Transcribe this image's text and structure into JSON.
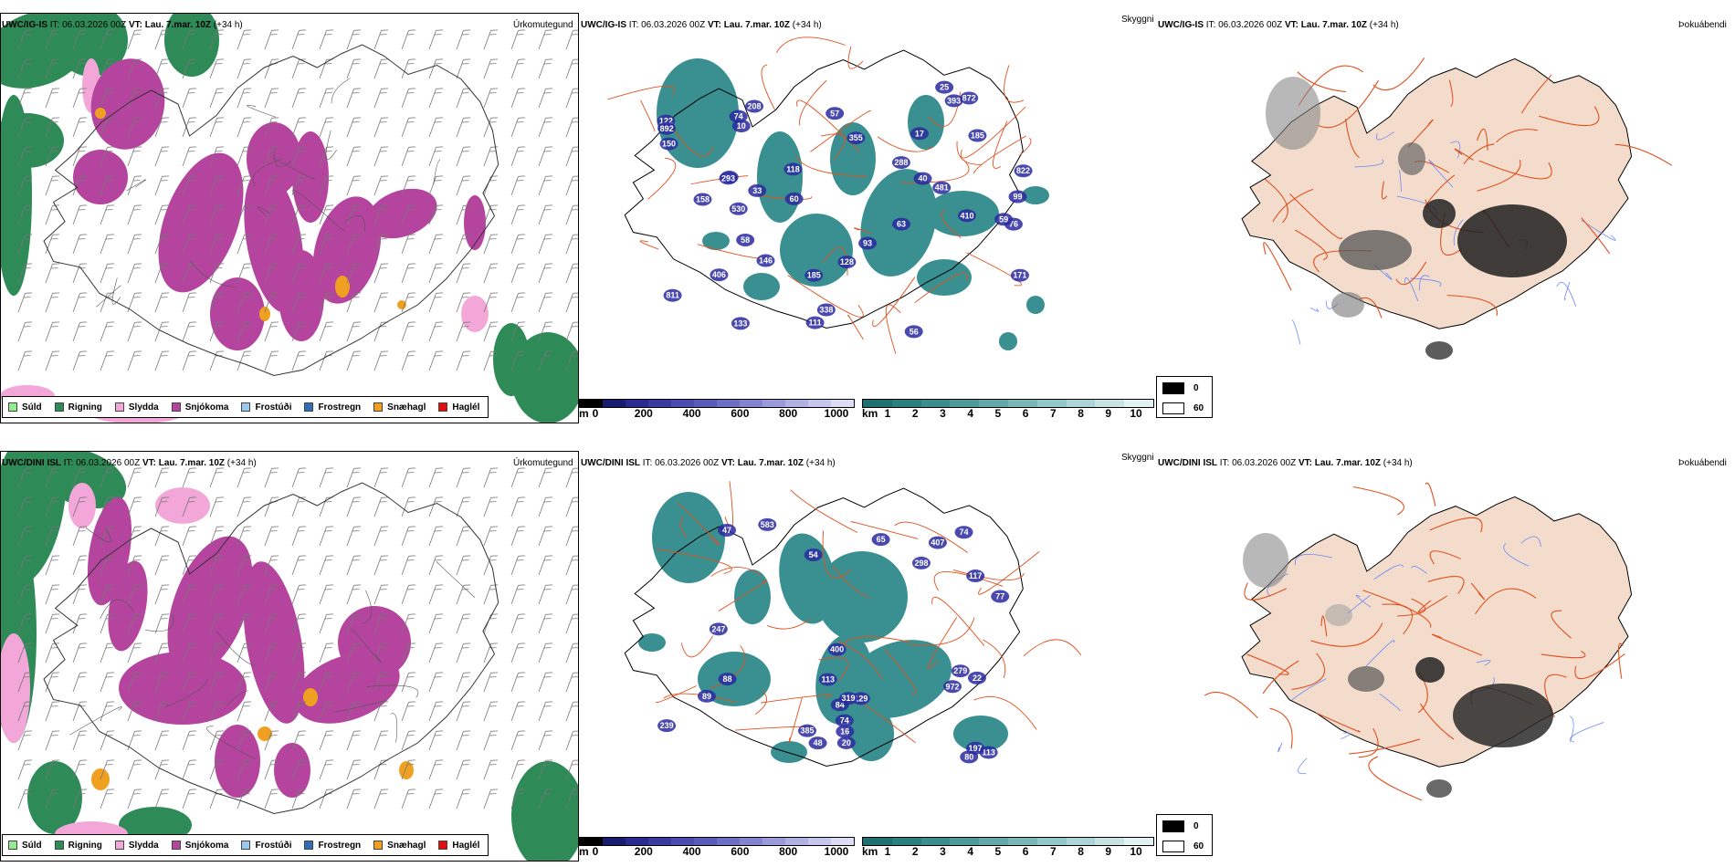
{
  "rows": [
    {
      "model": "UWC/IG-IS",
      "init_time": "IT: 06.03.2026 00Z",
      "valid_time": "VT: Lau. 7.mar. 10Z",
      "lead": "(+34 h)",
      "precip_title": "Úrkomutegund",
      "vis_title": "Skyggni",
      "cloud_title": "Þokuábendi",
      "cloud_values": [
        "93",
        "60",
        "93",
        "58",
        "74",
        "57",
        "25",
        "40",
        "185",
        "355",
        "530",
        "56",
        "410",
        "811",
        "146",
        "150",
        "128",
        "171",
        "185",
        "99",
        "158",
        "118",
        "481",
        "122",
        "293",
        "133",
        "892",
        "10",
        "288",
        "338",
        "393",
        "111",
        "63",
        "33",
        "872",
        "76",
        "59",
        "208",
        "17",
        "406",
        "822"
      ],
      "vis_values": []
    },
    {
      "model": "UWC/DINI ISL",
      "init_time": "IT: 06.03.2026 00Z",
      "valid_time": "VT: Lau. 7.mar. 10Z",
      "lead": "(+34 h)",
      "precip_title": "Úrkomutegund",
      "vis_title": "Skyggni",
      "cloud_title": "Þokuábendi",
      "cloud_values": [
        "113",
        "113",
        "77",
        "84",
        "400",
        "129",
        "319",
        "74",
        "298",
        "197",
        "583",
        "407",
        "22",
        "88",
        "239",
        "117",
        "20",
        "279",
        "47",
        "65",
        "16",
        "247",
        "972",
        "385",
        "89",
        "48",
        "80",
        "54",
        "74"
      ],
      "vis_values": []
    }
  ],
  "precip_legend": [
    {
      "label": "Súld",
      "color": "#90ee90"
    },
    {
      "label": "Rigning",
      "color": "#2e8b57"
    },
    {
      "label": "Slydda",
      "color": "#f2a7d8"
    },
    {
      "label": "Snjókoma",
      "color": "#b5449e"
    },
    {
      "label": "Frostúði",
      "color": "#9cc8f0"
    },
    {
      "label": "Frostregn",
      "color": "#2d6fb5"
    },
    {
      "label": "Snæhagl",
      "color": "#f0a020"
    },
    {
      "label": "Haglél",
      "color": "#e01010"
    }
  ],
  "cloud_base_bar": {
    "unit": "m",
    "ticks": [
      "0",
      "200",
      "400",
      "600",
      "800",
      "1000"
    ],
    "colors": [
      "#000000",
      "#1a1a6e",
      "#2a2a8e",
      "#3a3aa0",
      "#4b4bb0",
      "#5a5ab8",
      "#6e6ec4",
      "#8383cf",
      "#9a9ad8",
      "#b0b0e2",
      "#c6c6ec",
      "#dcdcf4"
    ]
  },
  "visibility_bar": {
    "unit": "km",
    "ticks": [
      "1",
      "2",
      "3",
      "4",
      "5",
      "6",
      "7",
      "8",
      "9",
      "10"
    ],
    "colors": [
      "#1f7070",
      "#2a8080",
      "#3a8d8d",
      "#4d9a9a",
      "#62a8a8",
      "#7ab7b7",
      "#93c6c6",
      "#add5d5",
      "#c7e3e3",
      "#e2f1f1"
    ]
  },
  "fog_legend": {
    "items": [
      {
        "label": "0",
        "color": "#000000"
      },
      {
        "label": "60",
        "color": "#ffffff"
      }
    ]
  },
  "colors": {
    "land": "#f3dccb",
    "roads": "#e0501e",
    "rivers": "#6a8aff",
    "coast": "#000000",
    "rain": "#2e8b57",
    "snow": "#b5449e",
    "sleet": "#f2a7d8",
    "ice_pellets": "#f0a020",
    "vis_teal": "#3a9090",
    "cloud_blue": "#2a2aa0"
  }
}
